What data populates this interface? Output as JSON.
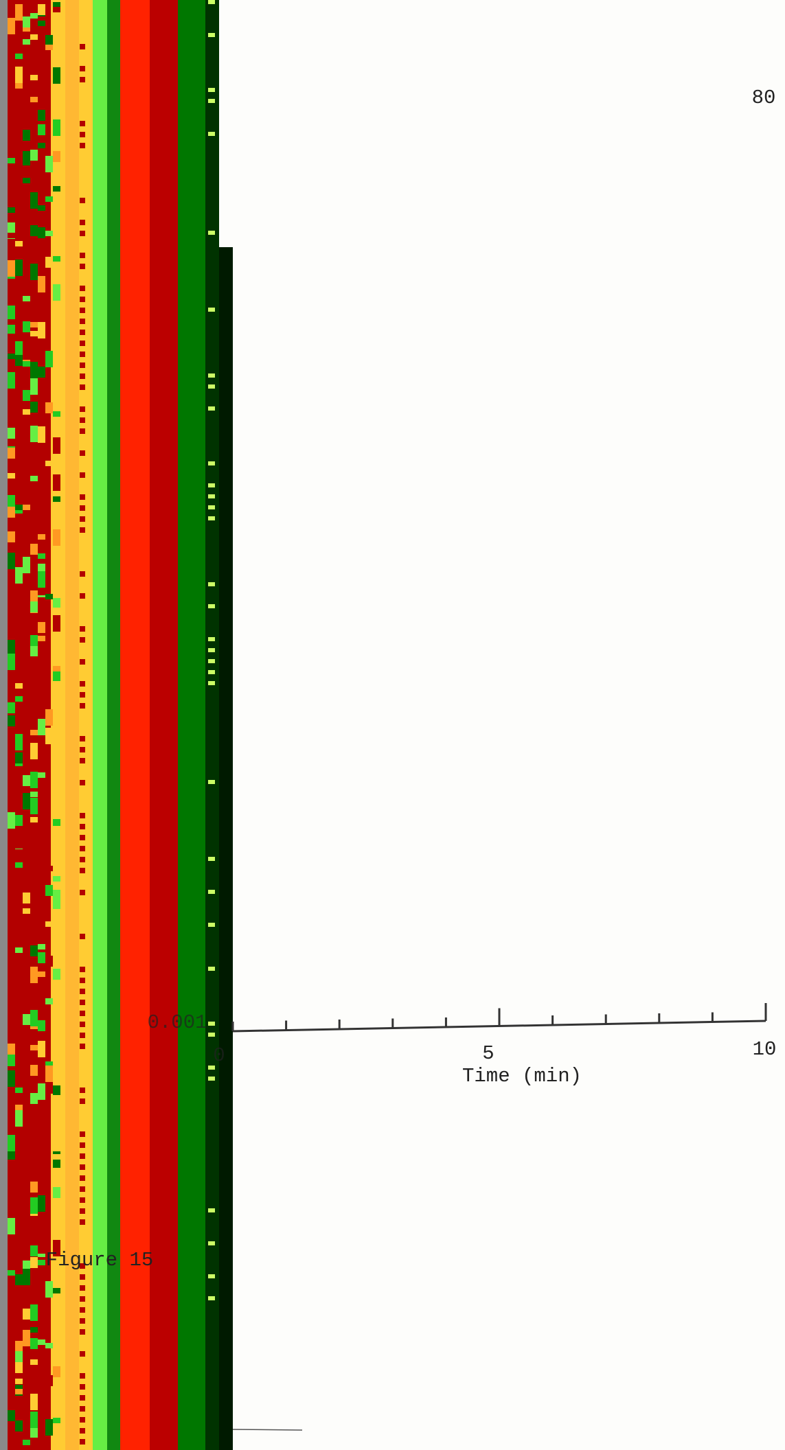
{
  "page_number": "80",
  "figure": {
    "caption": "Figure 15",
    "y_axis_label": "0.001",
    "x_axis": {
      "label": "Time (min)",
      "tick_labels": [
        "0",
        "5",
        "10"
      ]
    }
  }
}
